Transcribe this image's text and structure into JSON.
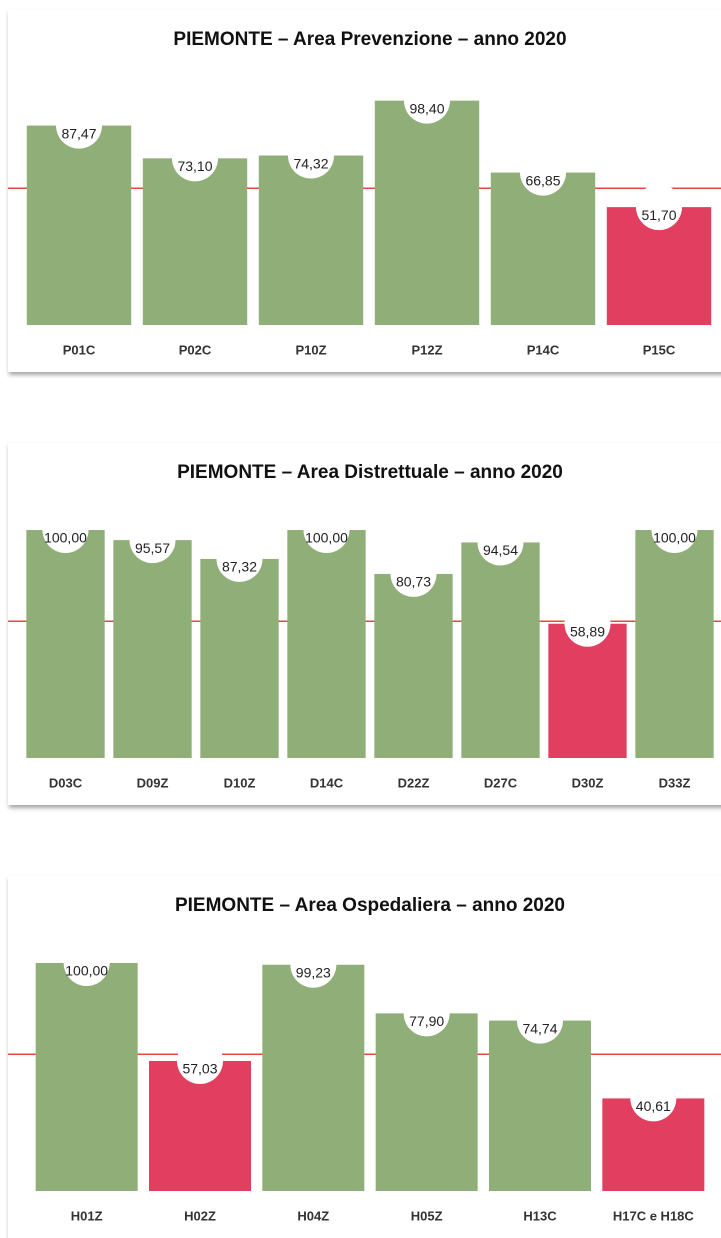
{
  "chart_data": [
    {
      "type": "bar",
      "title": "PIEMONTE  – Area Prevenzione – anno 2020",
      "categories": [
        "P01C",
        "P02C",
        "P10Z",
        "P12Z",
        "P14C",
        "P15C"
      ],
      "values": [
        87.47,
        73.1,
        74.32,
        98.4,
        66.85,
        51.7
      ],
      "value_labels": [
        "87,47",
        "73,10",
        "74,32",
        "98,40",
        "66,85",
        "51,70"
      ],
      "colors": [
        "#8fae78",
        "#8fae78",
        "#8fae78",
        "#8fae78",
        "#8fae78",
        "#e23e60"
      ],
      "ylim": [
        0,
        100
      ],
      "threshold": 60,
      "threshold_color": "#e8473f"
    },
    {
      "type": "bar",
      "title": "PIEMONTE  – Area Distrettuale – anno 2020",
      "categories": [
        "D03C",
        "D09Z",
        "D10Z",
        "D14C",
        "D22Z",
        "D27C",
        "D30Z",
        "D33Z"
      ],
      "values": [
        100.0,
        95.57,
        87.32,
        100.0,
        80.73,
        94.54,
        58.89,
        100.0
      ],
      "value_labels": [
        "100,00",
        "95,57",
        "87,32",
        "100,00",
        "80,73",
        "94,54",
        "58,89",
        "100,00"
      ],
      "colors": [
        "#8fae78",
        "#8fae78",
        "#8fae78",
        "#8fae78",
        "#8fae78",
        "#8fae78",
        "#e23e60",
        "#8fae78"
      ],
      "ylim": [
        0,
        100
      ],
      "threshold": 60,
      "threshold_color": "#e8473f"
    },
    {
      "type": "bar",
      "title": "PIEMONTE  – Area Ospedaliera – anno 2020",
      "categories": [
        "H01Z",
        "H02Z",
        "H04Z",
        "H05Z",
        "H13C",
        "H17C e H18C"
      ],
      "values": [
        100.0,
        57.03,
        99.23,
        77.9,
        74.74,
        40.61
      ],
      "value_labels": [
        "100,00",
        "57,03",
        "99,23",
        "77,90",
        "74,74",
        "40,61"
      ],
      "colors": [
        "#8fae78",
        "#e23e60",
        "#8fae78",
        "#8fae78",
        "#8fae78",
        "#e23e60"
      ],
      "ylim": [
        0,
        100
      ],
      "threshold": 60,
      "threshold_color": "#e8473f"
    }
  ]
}
